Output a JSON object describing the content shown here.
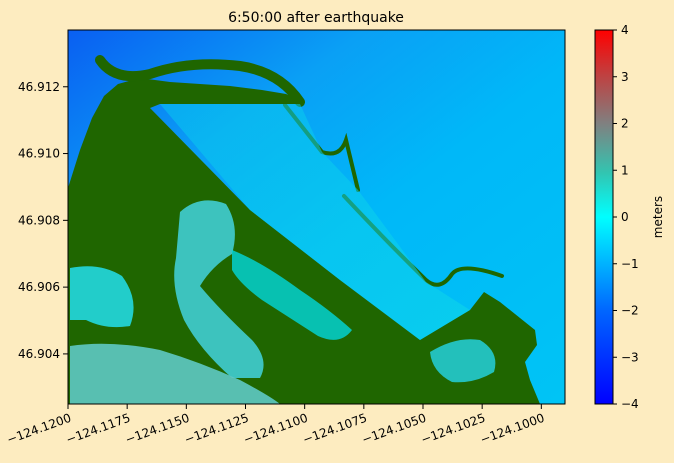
{
  "chart_data": {
    "type": "heatmap",
    "title": "6:50:00 after earthquake",
    "xlabel": "",
    "ylabel": "",
    "xlim": [
      -124.12,
      -124.099
    ],
    "ylim": [
      46.9025,
      46.9137
    ],
    "x_ticks": [
      -124.12,
      -124.1175,
      -124.115,
      -124.1125,
      -124.11,
      -124.1075,
      -124.105,
      -124.1025,
      -124.1
    ],
    "x_tick_labels": [
      "−124.1200",
      "−124.1175",
      "−124.1150",
      "−124.1125",
      "−124.1100",
      "−124.1075",
      "−124.1050",
      "−124.1025",
      "−124.1000"
    ],
    "y_ticks": [
      46.904,
      46.906,
      46.908,
      46.91,
      46.912
    ],
    "y_tick_labels": [
      "46.904",
      "46.906",
      "46.908",
      "46.910",
      "46.912"
    ],
    "colorbar": {
      "label": "meters",
      "range": [
        -4,
        4
      ],
      "ticks": [
        4,
        3,
        2,
        1,
        0,
        -1,
        -2,
        -3,
        -4
      ],
      "tick_labels": [
        "4",
        "3",
        "2",
        "1",
        "0",
        "−1",
        "−2",
        "−3",
        "−4"
      ],
      "colors": [
        "#0000ff",
        "#00ffff",
        "#ff0000"
      ]
    },
    "land_color": "#1f6600",
    "grid": false,
    "legend": "none"
  }
}
